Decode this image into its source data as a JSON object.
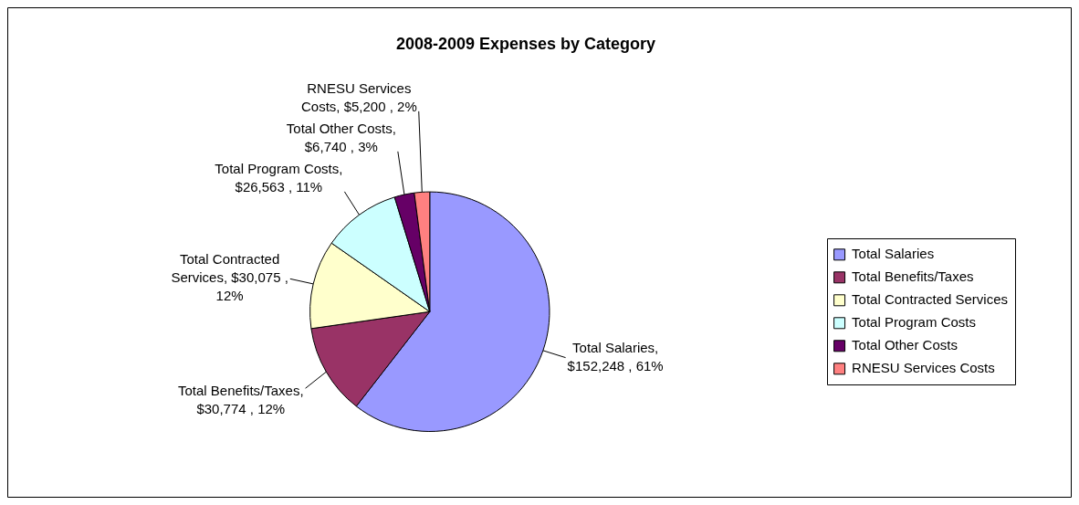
{
  "chart_data": {
    "type": "pie",
    "title": "2008-2009 Expenses by Category",
    "categories": [
      "Total Salaries",
      "Total Benefits/Taxes",
      "Total Contracted Services",
      "Total Program Costs",
      "Total Other Costs",
      "RNESU Services Costs"
    ],
    "values": [
      152248,
      30774,
      30075,
      26563,
      6740,
      5200
    ],
    "value_labels": [
      "Total Salaries, $152,248 , 61%",
      "Total Benefits/Taxes, $30,774 , 12%",
      "Total Contracted Services, $30,075 , 12%",
      "Total Program Costs, $26,563 , 11%",
      "Total Other Costs, $6,740 , 3%",
      "RNESU Services Costs, $5,200 , 2%"
    ],
    "colors": [
      "#9999ff",
      "#993366",
      "#ffffcc",
      "#ccffff",
      "#660066",
      "#ff8080"
    ],
    "legend": "right"
  }
}
